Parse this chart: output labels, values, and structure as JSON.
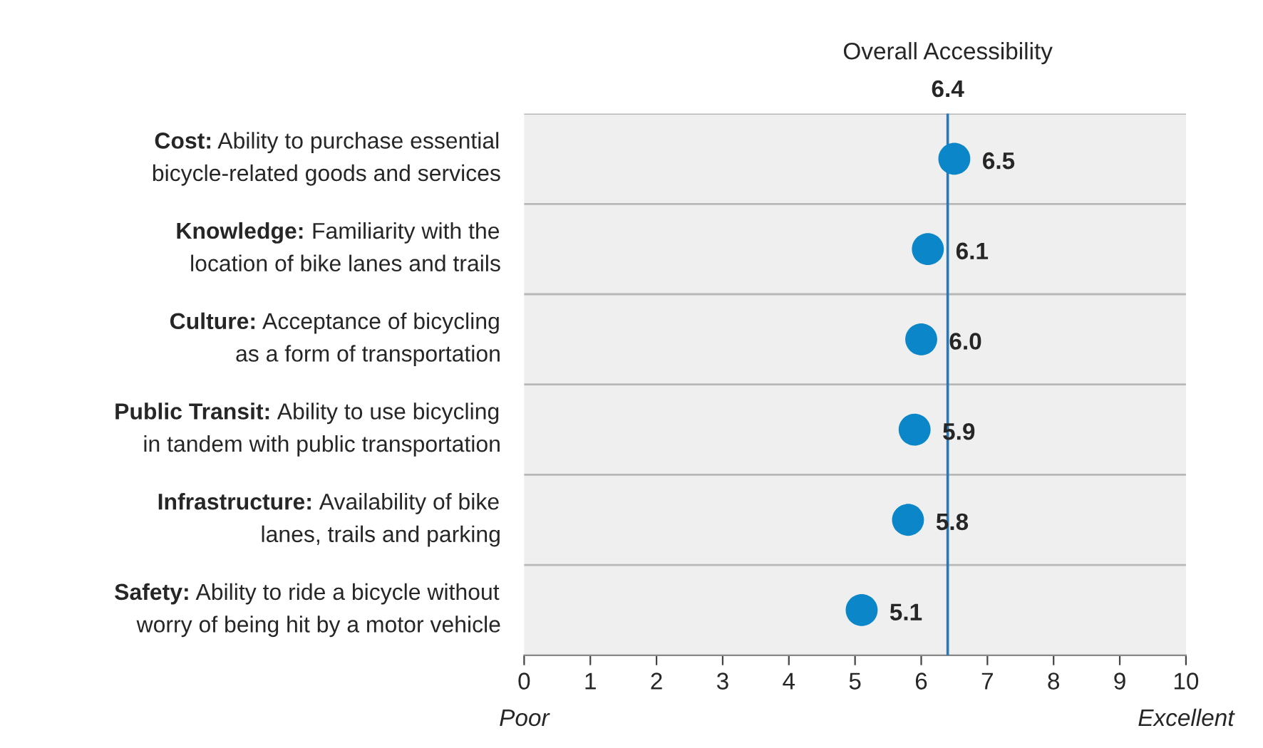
{
  "chart_data": {
    "type": "scatter",
    "orientation": "horizontal",
    "categories": [
      "Cost: Ability to purchase essential\nbicycle-related goods and services",
      "Knowledge: Familiarity with the\nlocation of bike lanes and trails",
      "Culture: Acceptance of bicycling\nas a form of transportation",
      "Public Transit: Ability to use bicycling\nin tandem with public transportation",
      "Infrastructure: Availability of bike\nlanes, trails and parking",
      "Safety: Ability to ride a bicycle without\nworry of being hit by a motor vehicle"
    ],
    "values": [
      6.5,
      6.1,
      6.0,
      5.9,
      5.8,
      5.1
    ],
    "value_labels": [
      "6.5",
      "6.1",
      "6.0",
      "5.9",
      "5.8",
      "5.1"
    ],
    "color": "#0a86c9",
    "marker": "circle",
    "xlim": [
      0,
      10
    ],
    "xticks": [
      0,
      1,
      2,
      3,
      4,
      5,
      6,
      7,
      8,
      9,
      10
    ],
    "ref_lines": [
      {
        "axis": "x",
        "value": 6.4,
        "label": "Overall Accessibility\n6.4",
        "color": "#2a78b4"
      }
    ],
    "annotations": [
      "Poor",
      "Excellent"
    ],
    "grid": "y"
  }
}
